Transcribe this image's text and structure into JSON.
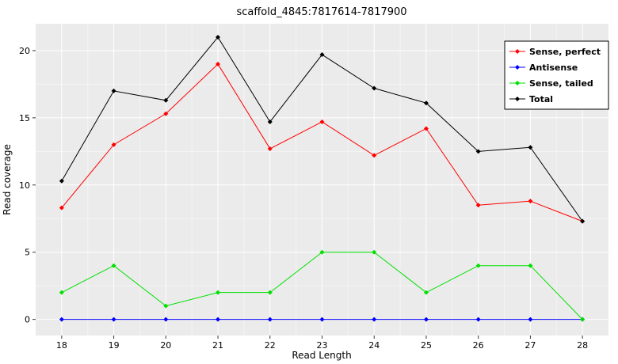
{
  "chart_data": {
    "type": "line",
    "title": "scaffold_4845:7817614-7817900",
    "xlabel": "Read Length",
    "ylabel": "Read coverage",
    "x": [
      18,
      19,
      20,
      21,
      22,
      23,
      24,
      25,
      26,
      27,
      28
    ],
    "series": [
      {
        "name": "Sense, perfect",
        "color": "#ff0000",
        "values": [
          8.3,
          13.0,
          15.3,
          19.0,
          12.7,
          14.7,
          12.2,
          14.2,
          8.5,
          8.8,
          7.3
        ]
      },
      {
        "name": "Antisense",
        "color": "#0000ff",
        "values": [
          0,
          0,
          0,
          0,
          0,
          0,
          0,
          0,
          0,
          0,
          0
        ]
      },
      {
        "name": "Sense, tailed",
        "color": "#00e000",
        "values": [
          2,
          4,
          1,
          2,
          2,
          5,
          5,
          2,
          4,
          4,
          0
        ]
      },
      {
        "name": "Total",
        "color": "#000000",
        "values": [
          10.3,
          17.0,
          16.3,
          21.0,
          14.7,
          19.7,
          17.2,
          16.1,
          12.5,
          12.8,
          7.3
        ]
      }
    ],
    "x_ticks": [
      18,
      19,
      20,
      21,
      22,
      23,
      24,
      25,
      26,
      27,
      28
    ],
    "y_ticks": [
      0,
      5,
      10,
      15,
      20
    ],
    "xlim": [
      17.5,
      28.5
    ],
    "ylim": [
      -1.2,
      22.0
    ],
    "grid": true,
    "legend_position": "top-right",
    "panel_bg": "#ebebeb",
    "grid_major_color": "#ffffff",
    "grid_minor_color": "#f4f4f4",
    "axis_text_color": "#000000",
    "tick_color": "#333333",
    "marker": "diamond"
  }
}
